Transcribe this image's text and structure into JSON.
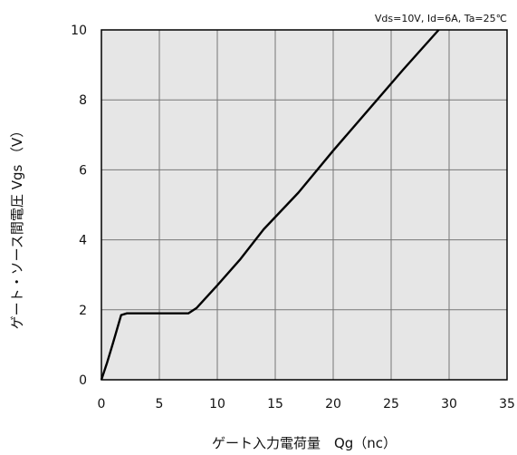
{
  "chart_data": {
    "type": "line",
    "title": "",
    "conditions": "Vds=10V, Id=6A, Ta=25℃",
    "xlabel": "ゲート入力電荷量　Qg（nc）",
    "ylabel": "ゲート・ソース間電圧 Vgs （V）",
    "xlim": [
      0,
      35
    ],
    "ylim": [
      0,
      10
    ],
    "xticks": [
      "0",
      "5",
      "10",
      "15",
      "20",
      "25",
      "30",
      "35"
    ],
    "yticks": [
      "0",
      "2",
      "4",
      "6",
      "8",
      "10"
    ],
    "grid": true,
    "series": [
      {
        "x": [
          0,
          0.5,
          1.0,
          1.7,
          2.2,
          3,
          7.5,
          8.2,
          10,
          12,
          14,
          17,
          20,
          23,
          26,
          29.1
        ],
        "y": [
          0,
          0.5,
          1.05,
          1.85,
          1.9,
          1.9,
          1.9,
          2.05,
          2.7,
          3.45,
          4.3,
          5.35,
          6.55,
          7.7,
          8.85,
          10.0
        ]
      }
    ]
  },
  "colors": {
    "plot_background": "#e6e6e6",
    "grid": "#777777",
    "line": "#000000"
  }
}
